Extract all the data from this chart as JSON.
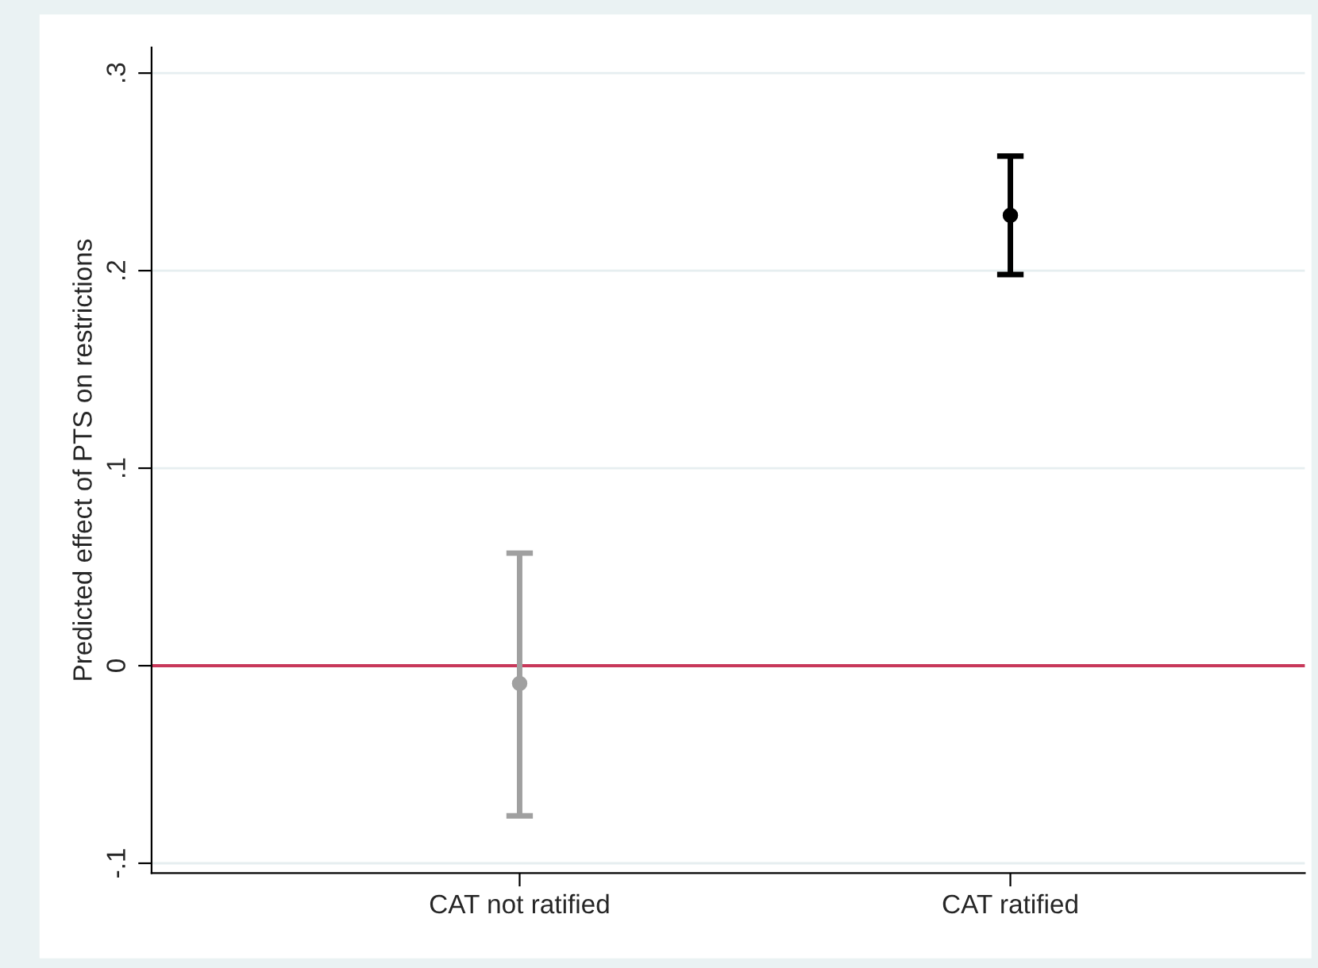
{
  "chart_data": {
    "type": "scatter",
    "ylabel": "Predicted effect of PTS on restrictions",
    "categories": [
      "CAT not ratified",
      "CAT ratified"
    ],
    "values": [
      -0.009,
      0.228
    ],
    "errors": [
      [
        -0.076,
        0.057
      ],
      [
        0.198,
        0.258
      ]
    ],
    "colors": [
      "#a0a0a0",
      "#000000"
    ],
    "marker": "circle",
    "ylim": [
      -0.105,
      0.313
    ],
    "yticks": [
      {
        "value": -0.1,
        "label": "-.1"
      },
      {
        "value": 0,
        "label": "0"
      },
      {
        "value": 0.1,
        "label": ".1"
      },
      {
        "value": 0.2,
        "label": ".2"
      },
      {
        "value": 0.3,
        "label": ".3"
      }
    ],
    "grid": "y",
    "ref_lines": [
      {
        "axis": "y",
        "value": 0,
        "color": "#c8385a",
        "line_style": "solid"
      }
    ]
  }
}
